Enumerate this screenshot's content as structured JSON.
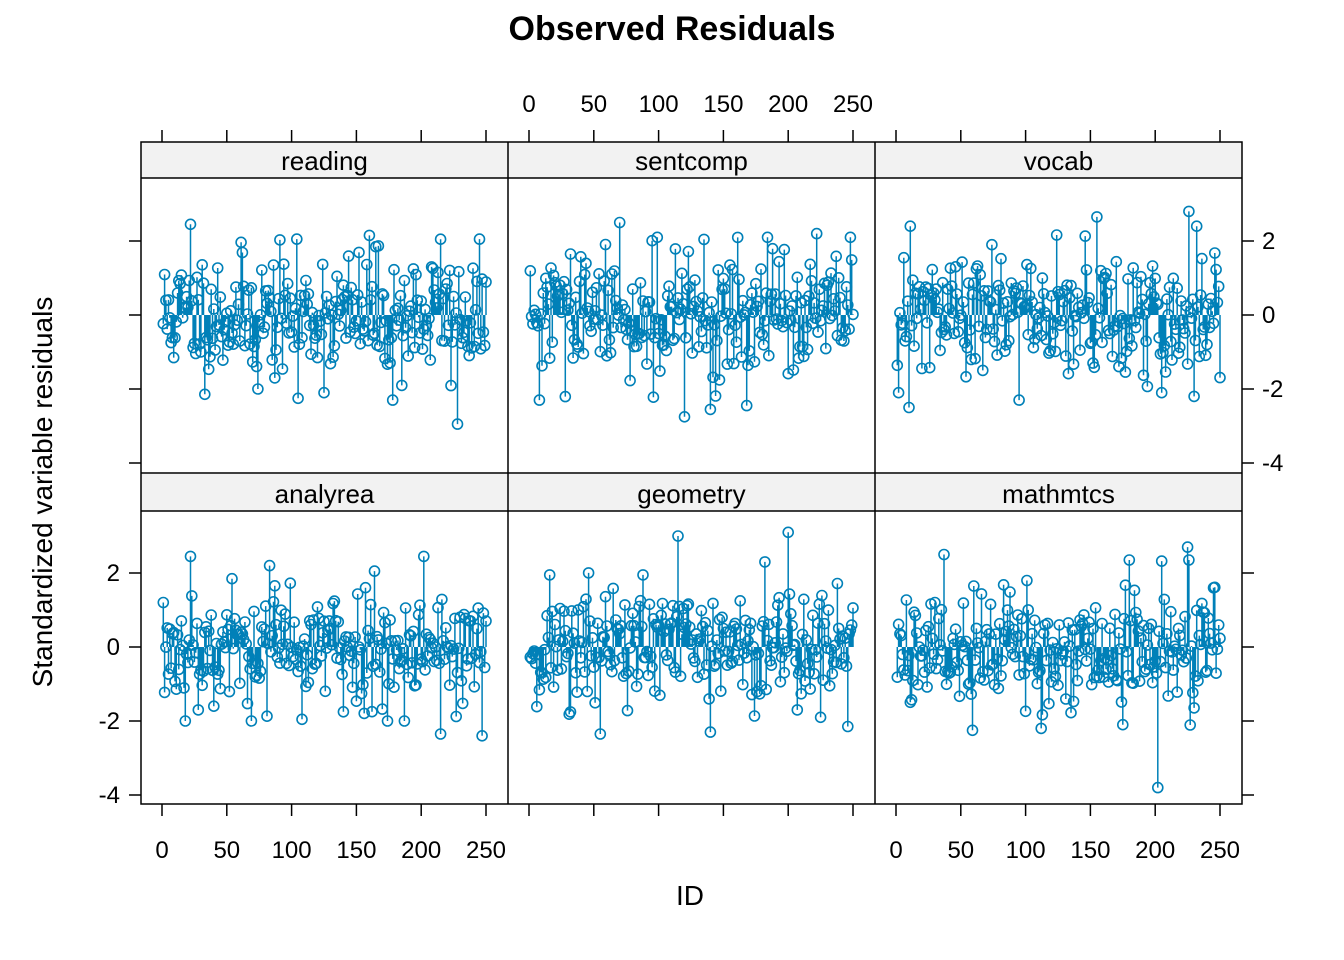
{
  "title": "Observed Residuals",
  "xlabel": "ID",
  "ylabel": "Standardized variable residuals",
  "chart_data": {
    "type": "scatter",
    "style": "lollipop (vertical lines from 0 to each point, open circles)",
    "title": "Observed Residuals",
    "xlabel": "ID",
    "ylabel": "Standardized variable residuals",
    "xlim": [
      0,
      250
    ],
    "ylim": [
      -4,
      3.5
    ],
    "x_ticks": [
      0,
      50,
      100,
      150,
      200,
      250
    ],
    "y_ticks": [
      -4,
      -2,
      0,
      2
    ],
    "point_color": "#0080B8",
    "strip_color": "#F2F2F2",
    "n_per_panel": 250,
    "panels": [
      {
        "name": "reading",
        "row": 0,
        "col": 0,
        "min": -2.95,
        "max": 2.45,
        "seed": 11,
        "labeled": [
          [
            22,
            2.45
          ],
          [
            228,
            -2.95
          ],
          [
            105,
            -2.25
          ],
          [
            178,
            -2.3
          ],
          [
            160,
            2.15
          ],
          [
            215,
            2.05
          ],
          [
            74,
            -2.0
          ]
        ]
      },
      {
        "name": "sentcomp",
        "row": 0,
        "col": 1,
        "min": -2.8,
        "max": 2.5,
        "seed": 29,
        "labeled": [
          [
            70,
            2.5
          ],
          [
            120,
            -2.75
          ],
          [
            8,
            -2.3
          ],
          [
            140,
            -2.55
          ],
          [
            222,
            2.2
          ],
          [
            248,
            2.1
          ],
          [
            168,
            -2.45
          ]
        ]
      },
      {
        "name": "vocab",
        "row": 0,
        "col": 2,
        "min": -2.5,
        "max": 2.8,
        "seed": 47,
        "labeled": [
          [
            226,
            2.8
          ],
          [
            10,
            -2.5
          ],
          [
            155,
            2.65
          ],
          [
            230,
            -2.2
          ],
          [
            95,
            -2.3
          ],
          [
            205,
            -2.1
          ],
          [
            74,
            1.9
          ]
        ]
      },
      {
        "name": "analyrea",
        "row": 1,
        "col": 0,
        "min": -2.4,
        "max": 2.45,
        "seed": 53,
        "labeled": [
          [
            22,
            2.45
          ],
          [
            202,
            2.45
          ],
          [
            247,
            -2.4
          ],
          [
            215,
            -2.35
          ],
          [
            83,
            2.2
          ],
          [
            40,
            -1.6
          ],
          [
            140,
            -1.75
          ]
        ]
      },
      {
        "name": "geometry",
        "row": 1,
        "col": 1,
        "min": -2.35,
        "max": 3.1,
        "seed": 71,
        "labeled": [
          [
            200,
            3.1
          ],
          [
            115,
            3.0
          ],
          [
            55,
            -2.35
          ],
          [
            140,
            -2.3
          ],
          [
            246,
            -2.15
          ],
          [
            182,
            2.3
          ],
          [
            88,
            1.95
          ]
        ]
      },
      {
        "name": "mathmtcs",
        "row": 1,
        "col": 2,
        "min": -3.8,
        "max": 2.75,
        "seed": 89,
        "labeled": [
          [
            202,
            -3.8
          ],
          [
            37,
            2.5
          ],
          [
            225,
            2.7
          ],
          [
            59,
            -2.25
          ],
          [
            112,
            -2.2
          ],
          [
            175,
            -2.1
          ],
          [
            245,
            1.6
          ]
        ]
      }
    ]
  }
}
